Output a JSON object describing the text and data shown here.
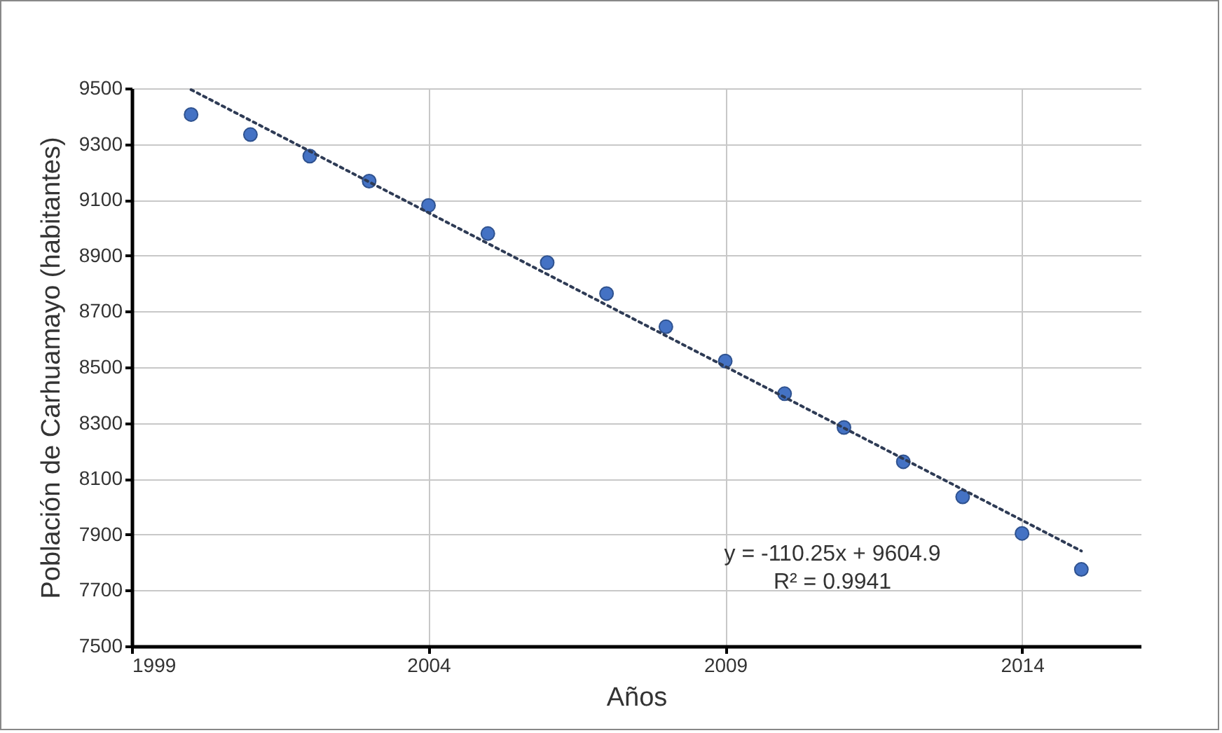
{
  "chart_data": {
    "type": "scatter",
    "xlabel": "Años",
    "ylabel": "Población de Carhuamayo (habitantes)",
    "x": [
      2000,
      2001,
      2002,
      2003,
      2004,
      2005,
      2006,
      2007,
      2008,
      2009,
      2010,
      2011,
      2012,
      2013,
      2014,
      2015
    ],
    "series": [
      {
        "color": "#4472c4",
        "marker": "circle",
        "values": [
          9406,
          9334,
          9257,
          9167,
          9080,
          8979,
          8875,
          8764,
          8645,
          8522,
          8405,
          8284,
          8161,
          8035,
          7904,
          7775
        ]
      },
      {
        "type": "line",
        "color": "#2e3b55",
        "line_style": "dotted",
        "marker": "none",
        "x": [
          2000,
          2015
        ],
        "values": [
          9495,
          7841
        ]
      }
    ],
    "xlim": [
      1999,
      2016
    ],
    "xticks": [
      1999,
      2004,
      2009,
      2014
    ],
    "ylim": [
      7500,
      9500
    ],
    "yticks": [
      7500,
      7700,
      7900,
      8100,
      8300,
      8500,
      8700,
      8900,
      9100,
      9300,
      9500
    ],
    "grid": true,
    "annotations": [
      "y = -110.25x + 9604.9",
      "R² = 0.9941"
    ]
  }
}
